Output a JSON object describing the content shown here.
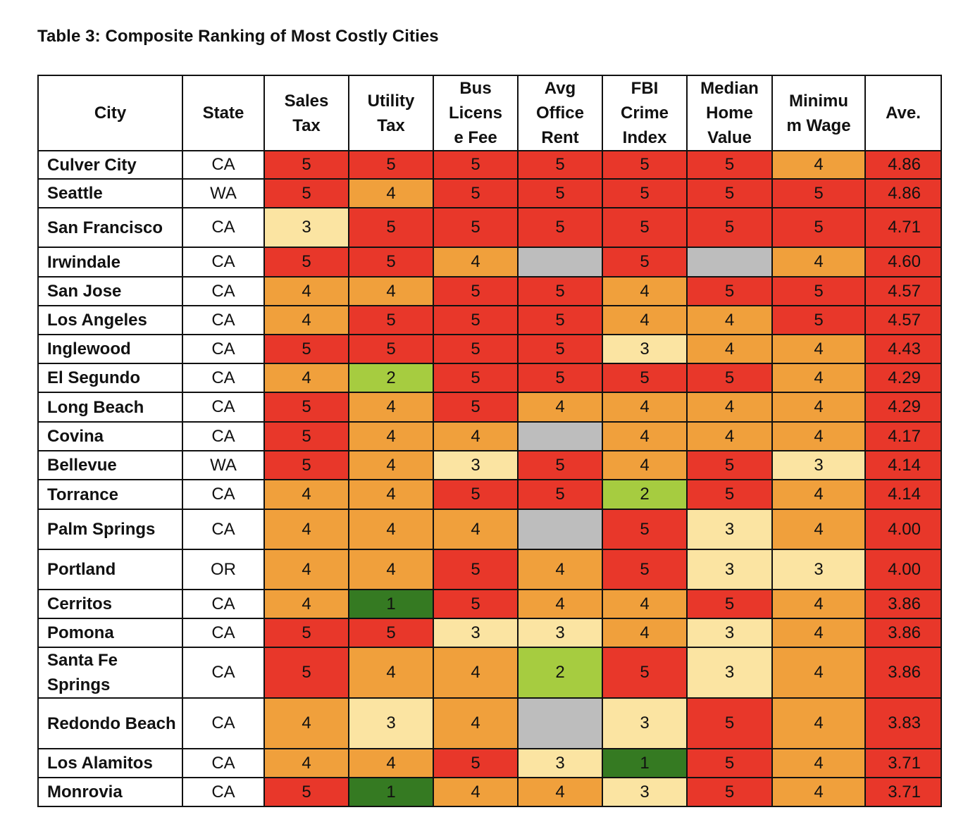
{
  "caption": "Table 3:  Composite Ranking of Most Costly Cities",
  "headers": [
    "City",
    "State",
    "Sales Tax",
    "Utility Tax",
    "Bus Licens e Fee",
    "Avg Office Rent",
    "FBI Crime Index",
    "Median Home Value",
    "Minimu m Wage",
    "Ave."
  ],
  "header_lines": [
    [
      "City"
    ],
    [
      "State"
    ],
    [
      "Sales",
      "Tax"
    ],
    [
      "Utility",
      "Tax"
    ],
    [
      "Bus",
      "Licens",
      "e Fee"
    ],
    [
      "Avg",
      "Office",
      "Rent"
    ],
    [
      "FBI",
      "Crime",
      "Index"
    ],
    [
      "Median",
      "Home",
      "Value"
    ],
    [
      "Minimu",
      "m Wage"
    ],
    [
      "Ave."
    ]
  ],
  "colors": {
    "5": "#e8372a",
    "4": "#f0a03c",
    "3": "#fbe4a2",
    "2": "#a6cc40",
    "1": "#357a22",
    "na": "#bdbdbd"
  },
  "rows": [
    {
      "city": "Culver City",
      "state": "CA",
      "scores": [
        "5",
        "5",
        "5",
        "5",
        "5",
        "5",
        "4"
      ],
      "ave": "4.86"
    },
    {
      "city": "Seattle",
      "state": "WA",
      "scores": [
        "5",
        "4",
        "5",
        "5",
        "5",
        "5",
        "5"
      ],
      "ave": "4.86"
    },
    {
      "city": "San Francisco",
      "state": "CA",
      "scores": [
        "3",
        "5",
        "5",
        "5",
        "5",
        "5",
        "5"
      ],
      "ave": "4.71"
    },
    {
      "city": "Irwindale",
      "state": "CA",
      "scores": [
        "5",
        "5",
        "4",
        "",
        "5",
        "",
        "4"
      ],
      "ave": "4.60"
    },
    {
      "city": "San Jose",
      "state": "CA",
      "scores": [
        "4",
        "4",
        "5",
        "5",
        "4",
        "5",
        "5"
      ],
      "ave": "4.57"
    },
    {
      "city": "Los Angeles",
      "state": "CA",
      "scores": [
        "4",
        "5",
        "5",
        "5",
        "4",
        "4",
        "5"
      ],
      "ave": "4.57"
    },
    {
      "city": "Inglewood",
      "state": "CA",
      "scores": [
        "5",
        "5",
        "5",
        "5",
        "3",
        "4",
        "4"
      ],
      "ave": "4.43"
    },
    {
      "city": "El Segundo",
      "state": "CA",
      "scores": [
        "4",
        "2",
        "5",
        "5",
        "5",
        "5",
        "4"
      ],
      "ave": "4.29"
    },
    {
      "city": "Long Beach",
      "state": "CA",
      "scores": [
        "5",
        "4",
        "5",
        "4",
        "4",
        "4",
        "4"
      ],
      "ave": "4.29"
    },
    {
      "city": "Covina",
      "state": "CA",
      "scores": [
        "5",
        "4",
        "4",
        "",
        "4",
        "4",
        "4"
      ],
      "ave": "4.17"
    },
    {
      "city": "Bellevue",
      "state": "WA",
      "scores": [
        "5",
        "4",
        "3",
        "5",
        "4",
        "5",
        "3"
      ],
      "ave": "4.14"
    },
    {
      "city": "Torrance",
      "state": "CA",
      "scores": [
        "4",
        "4",
        "5",
        "5",
        "2",
        "5",
        "4"
      ],
      "ave": "4.14"
    },
    {
      "city": "Palm Springs",
      "state": "CA",
      "scores": [
        "4",
        "4",
        "4",
        "",
        "5",
        "3",
        "4"
      ],
      "ave": "4.00"
    },
    {
      "city": "Portland",
      "state": "OR",
      "scores": [
        "4",
        "4",
        "5",
        "4",
        "5",
        "3",
        "3"
      ],
      "ave": "4.00"
    },
    {
      "city": "Cerritos",
      "state": "CA",
      "scores": [
        "4",
        "1",
        "5",
        "4",
        "4",
        "5",
        "4"
      ],
      "ave": "3.86"
    },
    {
      "city": "Pomona",
      "state": "CA",
      "scores": [
        "5",
        "5",
        "3",
        "3",
        "4",
        "3",
        "4"
      ],
      "ave": "3.86"
    },
    {
      "city": "Santa Fe Springs",
      "state": "CA",
      "scores": [
        "5",
        "4",
        "4",
        "2",
        "5",
        "3",
        "4"
      ],
      "ave": "3.86"
    },
    {
      "city": "Redondo Beach",
      "state": "CA",
      "scores": [
        "4",
        "3",
        "4",
        "",
        "3",
        "5",
        "4"
      ],
      "ave": "3.83"
    },
    {
      "city": "Los Alamitos",
      "state": "CA",
      "scores": [
        "4",
        "4",
        "5",
        "3",
        "1",
        "5",
        "4"
      ],
      "ave": "3.71"
    },
    {
      "city": "Monrovia",
      "state": "CA",
      "scores": [
        "5",
        "1",
        "4",
        "4",
        "3",
        "5",
        "4"
      ],
      "ave": "3.71"
    }
  ]
}
